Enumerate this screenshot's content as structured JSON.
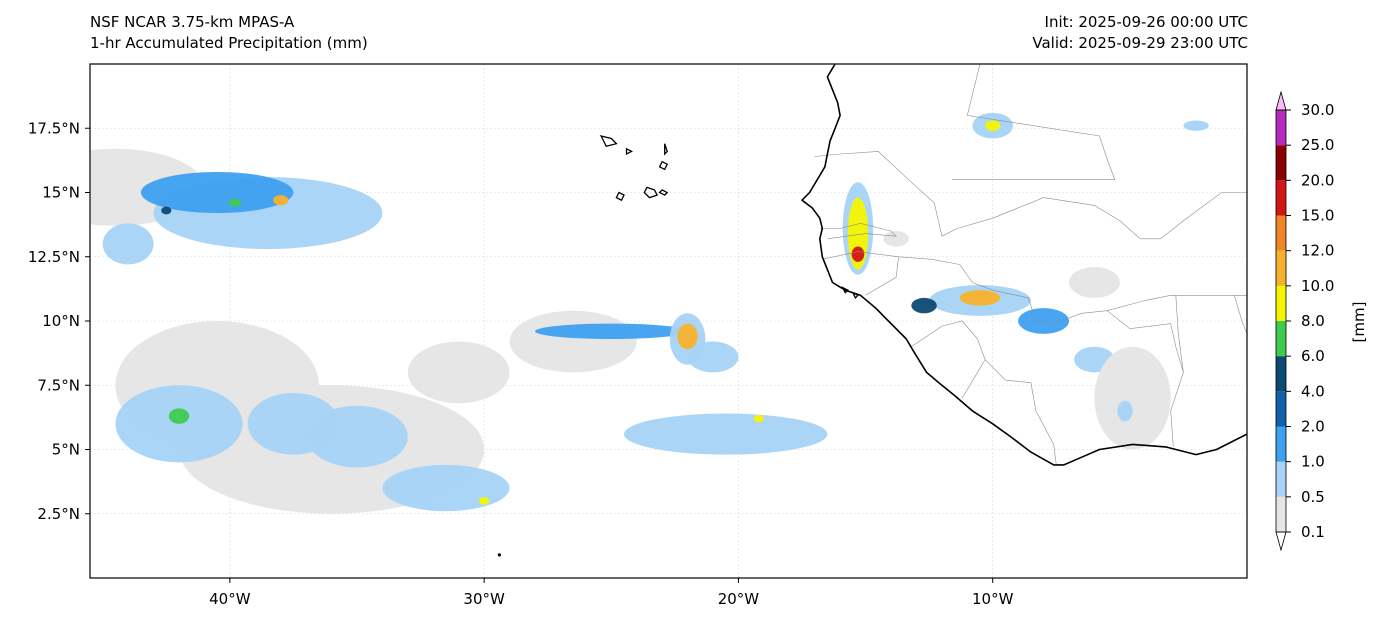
{
  "header": {
    "title_left_line1": "NSF NCAR 3.75-km MPAS-A",
    "title_left_line2": "1-hr Accumulated Precipitation (mm)",
    "title_right_line1": "Init: 2025-09-26 00:00 UTC",
    "title_right_line2": "Valid: 2025-09-29 23:00 UTC"
  },
  "map": {
    "extent": {
      "lon_min": -45.5,
      "lon_max": 0,
      "lat_min": 0,
      "lat_max": 20
    },
    "lat_ticks": [
      {
        "value": 2.5,
        "label": "2.5°N"
      },
      {
        "value": 5,
        "label": "5°N"
      },
      {
        "value": 7.5,
        "label": "7.5°N"
      },
      {
        "value": 10,
        "label": "10°N"
      },
      {
        "value": 12.5,
        "label": "12.5°N"
      },
      {
        "value": 15,
        "label": "15°N"
      },
      {
        "value": 17.5,
        "label": "17.5°N"
      }
    ],
    "lon_ticks": [
      {
        "value": -40,
        "label": "40°W"
      },
      {
        "value": -30,
        "label": "30°W"
      },
      {
        "value": -20,
        "label": "20°W"
      },
      {
        "value": -10,
        "label": "10°W"
      }
    ],
    "gridlines": true,
    "coastline": [
      [
        -16.2,
        20
      ],
      [
        -16.5,
        19.5
      ],
      [
        -16.3,
        19
      ],
      [
        -16.1,
        18.5
      ],
      [
        -16.0,
        18
      ],
      [
        -16.2,
        17.5
      ],
      [
        -16.4,
        17
      ],
      [
        -16.5,
        16.5
      ],
      [
        -16.6,
        16.0
      ],
      [
        -16.9,
        15.5
      ],
      [
        -17.2,
        15.0
      ],
      [
        -17.5,
        14.7
      ],
      [
        -17.1,
        14.4
      ],
      [
        -16.8,
        14.0
      ],
      [
        -16.7,
        13.6
      ],
      [
        -16.8,
        13.2
      ],
      [
        -16.7,
        12.5
      ],
      [
        -16.5,
        12.0
      ],
      [
        -16.3,
        11.5
      ],
      [
        -15.8,
        11.2
      ],
      [
        -15.2,
        11.0
      ],
      [
        -14.6,
        10.5
      ],
      [
        -14.0,
        9.9
      ],
      [
        -13.4,
        9.3
      ],
      [
        -13.1,
        8.8
      ],
      [
        -12.6,
        8.0
      ],
      [
        -12.0,
        7.5
      ],
      [
        -11.5,
        7.1
      ],
      [
        -10.8,
        6.5
      ],
      [
        -10.0,
        6.0
      ],
      [
        -9.3,
        5.5
      ],
      [
        -8.5,
        4.9
      ],
      [
        -7.6,
        4.4
      ],
      [
        -7.2,
        4.4
      ],
      [
        -6.5,
        4.7
      ],
      [
        -5.8,
        5.0
      ],
      [
        -4.5,
        5.2
      ],
      [
        -3.2,
        5.1
      ],
      [
        -2.0,
        4.8
      ],
      [
        -1.2,
        5.0
      ],
      [
        0.0,
        5.6
      ]
    ],
    "borders": [
      [
        [
          -11.5,
          20
        ],
        [
          -10.5,
          20
        ],
        [
          -11.0,
          18
        ],
        [
          -5.8,
          17.2
        ],
        [
          -5.5,
          16.3
        ],
        [
          -5.2,
          15.5
        ],
        [
          -11.6,
          15.5
        ]
      ],
      [
        [
          -17.0,
          16.4
        ],
        [
          -16.0,
          16.5
        ],
        [
          -14.5,
          16.6
        ],
        [
          -13.2,
          15.4
        ],
        [
          -12.3,
          14.6
        ],
        [
          -12.0,
          13.3
        ]
      ],
      [
        [
          -16.7,
          12.4
        ],
        [
          -15.3,
          12.7
        ],
        [
          -13.7,
          12.5
        ],
        [
          -12.4,
          12.4
        ],
        [
          -11.3,
          12.2
        ]
      ],
      [
        [
          -16.8,
          13.6
        ],
        [
          -16.0,
          13.6
        ],
        [
          -15.2,
          13.8
        ],
        [
          -14.0,
          13.5
        ],
        [
          -13.8,
          13.3
        ],
        [
          -15.0,
          13.4
        ],
        [
          -16.5,
          13.2
        ]
      ],
      [
        [
          -15.0,
          11.0
        ],
        [
          -13.8,
          11.7
        ],
        [
          -13.7,
          12.5
        ]
      ],
      [
        [
          -13.2,
          9.0
        ],
        [
          -12.0,
          9.8
        ],
        [
          -11.2,
          10.0
        ],
        [
          -10.6,
          9.3
        ],
        [
          -10.3,
          8.5
        ],
        [
          -11.2,
          7.0
        ]
      ],
      [
        [
          -10.3,
          8.5
        ],
        [
          -9.5,
          7.7
        ],
        [
          -8.5,
          7.6
        ],
        [
          -8.3,
          6.5
        ],
        [
          -7.6,
          5.2
        ],
        [
          -7.5,
          4.4
        ]
      ],
      [
        [
          -11.3,
          12.2
        ],
        [
          -10.8,
          11.5
        ],
        [
          -10.0,
          11.2
        ],
        [
          -8.6,
          10.9
        ],
        [
          -8.3,
          10.0
        ],
        [
          -7.6,
          9.9
        ],
        [
          -6.5,
          10.3
        ],
        [
          -5.5,
          10.4
        ],
        [
          -4.6,
          9.7
        ],
        [
          -3.0,
          9.9
        ],
        [
          -2.8,
          9.0
        ],
        [
          -2.5,
          8.0
        ],
        [
          -3.0,
          6.5
        ],
        [
          -2.9,
          5.1
        ]
      ],
      [
        [
          -12.0,
          13.3
        ],
        [
          -11.4,
          13.6
        ],
        [
          -10.0,
          14.0
        ],
        [
          -8.0,
          14.8
        ],
        [
          -6.0,
          14.5
        ],
        [
          -5.0,
          13.9
        ],
        [
          -4.2,
          13.2
        ],
        [
          -3.4,
          13.2
        ],
        [
          -2.5,
          13.9
        ],
        [
          -1.0,
          15.0
        ],
        [
          0.0,
          15.0
        ]
      ],
      [
        [
          -5.5,
          10.4
        ],
        [
          -4.0,
          10.8
        ],
        [
          -3.0,
          11.0
        ],
        [
          -0.5,
          11.0
        ],
        [
          0.0,
          11.0
        ]
      ],
      [
        [
          -2.8,
          11.0
        ],
        [
          -2.7,
          9.5
        ],
        [
          -2.5,
          8.0
        ]
      ],
      [
        [
          -0.5,
          11.0
        ],
        [
          -0.2,
          10.0
        ],
        [
          0.0,
          9.5
        ]
      ]
    ],
    "islands": [
      [
        [
          -25.4,
          17.2
        ],
        [
          -25.0,
          17.1
        ],
        [
          -24.8,
          16.9
        ],
        [
          -25.2,
          16.8
        ],
        [
          -25.3,
          17.0
        ]
      ],
      [
        [
          -24.4,
          16.7
        ],
        [
          -24.2,
          16.6
        ],
        [
          -24.4,
          16.5
        ]
      ],
      [
        [
          -22.9,
          16.9
        ],
        [
          -22.8,
          16.6
        ],
        [
          -22.9,
          16.5
        ]
      ],
      [
        [
          -23.0,
          16.2
        ],
        [
          -22.8,
          16.1
        ],
        [
          -22.9,
          15.9
        ],
        [
          -23.1,
          16.0
        ]
      ],
      [
        [
          -24.7,
          15.0
        ],
        [
          -24.5,
          14.9
        ],
        [
          -24.6,
          14.7
        ],
        [
          -24.8,
          14.8
        ]
      ],
      [
        [
          -23.6,
          15.2
        ],
        [
          -23.3,
          15.1
        ],
        [
          -23.2,
          14.9
        ],
        [
          -23.5,
          14.8
        ],
        [
          -23.7,
          15.0
        ]
      ],
      [
        [
          -23.0,
          15.1
        ],
        [
          -22.8,
          15.0
        ],
        [
          -22.9,
          14.9
        ],
        [
          -23.1,
          15.0
        ]
      ],
      [
        [
          -15.9,
          11.3
        ],
        [
          -15.7,
          11.2
        ],
        [
          -15.8,
          11.1
        ]
      ],
      [
        [
          -15.5,
          11.1
        ],
        [
          -15.3,
          11.0
        ],
        [
          -15.4,
          10.9
        ]
      ]
    ],
    "precip_cells": [
      {
        "lon": -44.5,
        "lat": 15.2,
        "rx": 3.5,
        "ry": 1.5,
        "level": 0
      },
      {
        "lon": -38.5,
        "lat": 14.2,
        "rx": 4.5,
        "ry": 1.4,
        "level": 1
      },
      {
        "lon": -40.5,
        "lat": 15.0,
        "rx": 3.0,
        "ry": 0.8,
        "level": 2
      },
      {
        "lon": -39.8,
        "lat": 14.6,
        "rx": 0.25,
        "ry": 0.15,
        "level": 5
      },
      {
        "lon": -38.0,
        "lat": 14.7,
        "rx": 0.3,
        "ry": 0.2,
        "level": 7
      },
      {
        "lon": -42.5,
        "lat": 14.3,
        "rx": 0.2,
        "ry": 0.15,
        "level": 4
      },
      {
        "lon": -44.0,
        "lat": 13.0,
        "rx": 1.0,
        "ry": 0.8,
        "level": 1
      },
      {
        "lon": -40.5,
        "lat": 7.5,
        "rx": 4.0,
        "ry": 2.5,
        "level": 0
      },
      {
        "lon": -31.0,
        "lat": 8.0,
        "rx": 2.0,
        "ry": 1.2,
        "level": 0
      },
      {
        "lon": -26.5,
        "lat": 9.2,
        "rx": 2.5,
        "ry": 1.2,
        "level": 0
      },
      {
        "lon": -36.0,
        "lat": 5.0,
        "rx": 6.0,
        "ry": 2.5,
        "level": 0
      },
      {
        "lon": -42.0,
        "lat": 6.0,
        "rx": 2.5,
        "ry": 1.5,
        "level": 1
      },
      {
        "lon": -42.0,
        "lat": 6.3,
        "rx": 0.4,
        "ry": 0.3,
        "level": 5
      },
      {
        "lon": -37.5,
        "lat": 6.0,
        "rx": 1.8,
        "ry": 1.2,
        "level": 1
      },
      {
        "lon": -35.0,
        "lat": 5.5,
        "rx": 2.0,
        "ry": 1.2,
        "level": 1
      },
      {
        "lon": -31.5,
        "lat": 3.5,
        "rx": 2.5,
        "ry": 0.9,
        "level": 1
      },
      {
        "lon": -30.0,
        "lat": 3.0,
        "rx": 0.2,
        "ry": 0.15,
        "level": 6
      },
      {
        "lon": -25.0,
        "lat": 9.6,
        "rx": 3.0,
        "ry": 0.3,
        "level": 2
      },
      {
        "lon": -22.0,
        "lat": 9.3,
        "rx": 0.7,
        "ry": 1.0,
        "level": 1
      },
      {
        "lon": -22.0,
        "lat": 9.4,
        "rx": 0.4,
        "ry": 0.5,
        "level": 7
      },
      {
        "lon": -21.0,
        "lat": 8.6,
        "rx": 1.0,
        "ry": 0.6,
        "level": 1
      },
      {
        "lon": -20.5,
        "lat": 5.6,
        "rx": 4.0,
        "ry": 0.8,
        "level": 1
      },
      {
        "lon": -19.2,
        "lat": 6.2,
        "rx": 0.2,
        "ry": 0.15,
        "level": 6
      },
      {
        "lon": -15.3,
        "lat": 13.6,
        "rx": 0.6,
        "ry": 1.8,
        "level": 1
      },
      {
        "lon": -15.3,
        "lat": 13.4,
        "rx": 0.4,
        "ry": 1.4,
        "level": 6
      },
      {
        "lon": -15.3,
        "lat": 12.6,
        "rx": 0.25,
        "ry": 0.3,
        "level": 9
      },
      {
        "lon": -13.8,
        "lat": 13.2,
        "rx": 0.5,
        "ry": 0.3,
        "level": 0
      },
      {
        "lon": -10.0,
        "lat": 17.6,
        "rx": 0.8,
        "ry": 0.5,
        "level": 1
      },
      {
        "lon": -10.0,
        "lat": 17.6,
        "rx": 0.3,
        "ry": 0.2,
        "level": 6
      },
      {
        "lon": -2.0,
        "lat": 17.6,
        "rx": 0.5,
        "ry": 0.2,
        "level": 1
      },
      {
        "lon": -10.5,
        "lat": 10.8,
        "rx": 2.0,
        "ry": 0.6,
        "level": 1
      },
      {
        "lon": -10.5,
        "lat": 10.9,
        "rx": 0.8,
        "ry": 0.3,
        "level": 7
      },
      {
        "lon": -8.0,
        "lat": 10.0,
        "rx": 1.0,
        "ry": 0.5,
        "level": 2
      },
      {
        "lon": -12.7,
        "lat": 10.6,
        "rx": 0.5,
        "ry": 0.3,
        "level": 4
      },
      {
        "lon": -6.0,
        "lat": 8.5,
        "rx": 0.8,
        "ry": 0.5,
        "level": 1
      },
      {
        "lon": -4.5,
        "lat": 7.0,
        "rx": 1.5,
        "ry": 2.0,
        "level": 0
      },
      {
        "lon": -4.8,
        "lat": 6.5,
        "rx": 0.3,
        "ry": 0.4,
        "level": 1
      },
      {
        "lon": -6.0,
        "lat": 11.5,
        "rx": 1.0,
        "ry": 0.6,
        "level": 0
      }
    ],
    "point_markers": [
      {
        "lon": -29.4,
        "lat": 0.9
      }
    ]
  },
  "colorbar": {
    "units": "[mm]",
    "levels": [
      "0.1",
      "0.5",
      "1.0",
      "2.0",
      "4.0",
      "6.0",
      "8.0",
      "10.0",
      "12.0",
      "15.0",
      "20.0",
      "25.0",
      "30.0"
    ],
    "colors": [
      "#e6e6e6",
      "#a6d3f7",
      "#3da0f0",
      "#1260a8",
      "#0b4a73",
      "#3dcc4e",
      "#f5f500",
      "#f7b22c",
      "#ee8723",
      "#d31515",
      "#8b0000",
      "#b52bbd",
      "#f7bcf7"
    ],
    "extend": "both"
  }
}
